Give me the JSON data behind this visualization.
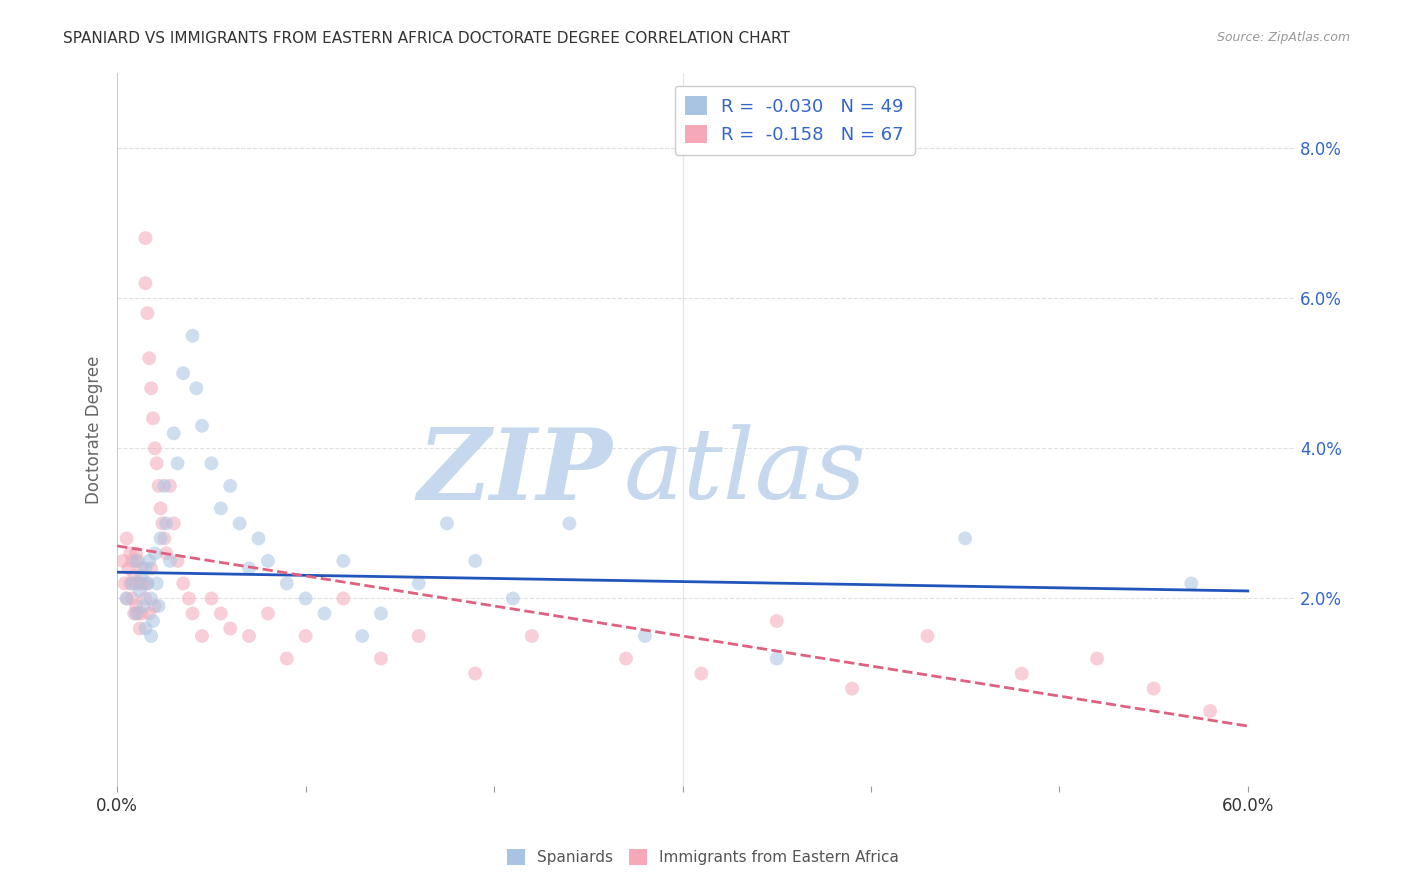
{
  "title": "SPANIARD VS IMMIGRANTS FROM EASTERN AFRICA DOCTORATE DEGREE CORRELATION CHART",
  "source": "Source: ZipAtlas.com",
  "ylabel": "Doctorate Degree",
  "xlim": [
    0.0,
    0.625
  ],
  "ylim": [
    -0.005,
    0.09
  ],
  "yticks_right": [
    0.02,
    0.04,
    0.06,
    0.08
  ],
  "yticklabels_right": [
    "2.0%",
    "4.0%",
    "6.0%",
    "8.0%"
  ],
  "blue_R": "-0.030",
  "blue_N": "49",
  "pink_R": "-0.158",
  "pink_N": "67",
  "blue_color": "#a8c4e2",
  "pink_color": "#f4a8b8",
  "blue_line_color": "#2255bb",
  "pink_line_color": "#e06080",
  "legend_text_color": "#3366cc",
  "watermark_zip_color": "#c5d8ee",
  "watermark_atlas_color": "#c5d8ee",
  "blue_scatter_x": [
    0.005,
    0.008,
    0.01,
    0.01,
    0.012,
    0.013,
    0.014,
    0.015,
    0.015,
    0.016,
    0.017,
    0.018,
    0.018,
    0.019,
    0.02,
    0.021,
    0.022,
    0.023,
    0.025,
    0.026,
    0.028,
    0.03,
    0.032,
    0.035,
    0.04,
    0.042,
    0.045,
    0.05,
    0.055,
    0.06,
    0.065,
    0.07,
    0.075,
    0.08,
    0.09,
    0.1,
    0.11,
    0.12,
    0.13,
    0.14,
    0.16,
    0.175,
    0.19,
    0.21,
    0.24,
    0.28,
    0.35,
    0.45,
    0.57
  ],
  "blue_scatter_y": [
    0.02,
    0.022,
    0.025,
    0.018,
    0.021,
    0.023,
    0.019,
    0.024,
    0.016,
    0.022,
    0.025,
    0.02,
    0.015,
    0.017,
    0.026,
    0.022,
    0.019,
    0.028,
    0.035,
    0.03,
    0.025,
    0.042,
    0.038,
    0.05,
    0.055,
    0.048,
    0.043,
    0.038,
    0.032,
    0.035,
    0.03,
    0.024,
    0.028,
    0.025,
    0.022,
    0.02,
    0.018,
    0.025,
    0.015,
    0.018,
    0.022,
    0.03,
    0.025,
    0.02,
    0.03,
    0.015,
    0.012,
    0.028,
    0.022
  ],
  "pink_scatter_x": [
    0.003,
    0.004,
    0.005,
    0.005,
    0.006,
    0.007,
    0.007,
    0.008,
    0.008,
    0.009,
    0.009,
    0.01,
    0.01,
    0.01,
    0.011,
    0.011,
    0.012,
    0.012,
    0.013,
    0.013,
    0.014,
    0.015,
    0.015,
    0.015,
    0.016,
    0.016,
    0.017,
    0.017,
    0.018,
    0.018,
    0.019,
    0.02,
    0.02,
    0.021,
    0.022,
    0.023,
    0.024,
    0.025,
    0.026,
    0.028,
    0.03,
    0.032,
    0.035,
    0.038,
    0.04,
    0.045,
    0.05,
    0.055,
    0.06,
    0.07,
    0.08,
    0.09,
    0.1,
    0.12,
    0.14,
    0.16,
    0.19,
    0.22,
    0.27,
    0.31,
    0.35,
    0.39,
    0.43,
    0.48,
    0.52,
    0.55,
    0.58
  ],
  "pink_scatter_y": [
    0.025,
    0.022,
    0.028,
    0.02,
    0.024,
    0.026,
    0.022,
    0.025,
    0.02,
    0.023,
    0.018,
    0.026,
    0.022,
    0.019,
    0.025,
    0.018,
    0.022,
    0.016,
    0.024,
    0.018,
    0.022,
    0.068,
    0.062,
    0.02,
    0.058,
    0.022,
    0.052,
    0.018,
    0.048,
    0.024,
    0.044,
    0.04,
    0.019,
    0.038,
    0.035,
    0.032,
    0.03,
    0.028,
    0.026,
    0.035,
    0.03,
    0.025,
    0.022,
    0.02,
    0.018,
    0.015,
    0.02,
    0.018,
    0.016,
    0.015,
    0.018,
    0.012,
    0.015,
    0.02,
    0.012,
    0.015,
    0.01,
    0.015,
    0.012,
    0.01,
    0.017,
    0.008,
    0.015,
    0.01,
    0.012,
    0.008,
    0.005
  ],
  "blue_trend_x": [
    0.0,
    0.6
  ],
  "blue_trend_y": [
    0.0235,
    0.021
  ],
  "pink_trend_x": [
    0.0,
    0.6
  ],
  "pink_trend_y": [
    0.027,
    0.003
  ],
  "background_color": "#ffffff",
  "grid_color": "#e0e0e0",
  "scatter_size": 100,
  "scatter_alpha": 0.55
}
